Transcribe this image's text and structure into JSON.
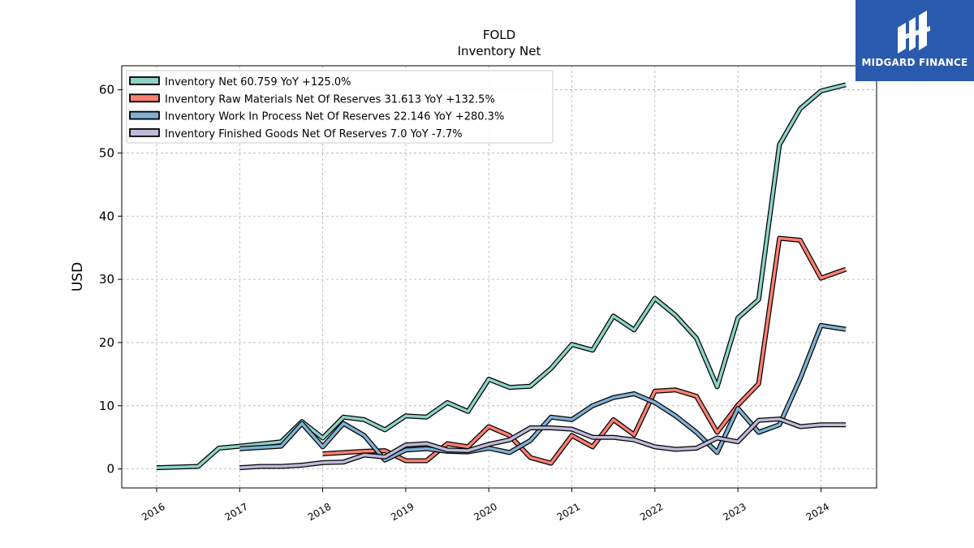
{
  "brand": {
    "name": "MIDGARD FINANCE",
    "bg_color": "#2a5aad"
  },
  "chart_data": {
    "type": "line",
    "title": "FOLD",
    "subtitle": "Inventory Net",
    "xlabel": "",
    "ylabel": "USD",
    "xlim": [
      2015.58,
      2024.67
    ],
    "ylim": [
      -3.0,
      63.8
    ],
    "yticks": [
      0,
      10,
      20,
      30,
      40,
      50,
      60
    ],
    "xticks": [
      "2016",
      "2017",
      "2018",
      "2019",
      "2020",
      "2021",
      "2022",
      "2023",
      "2024"
    ],
    "grid": true,
    "legend_position": "top-left",
    "series": [
      {
        "name": "Inventory Net  60.759 YoY +125.0%",
        "color": "#8dd3c7",
        "points": [
          [
            2016.0,
            0.2
          ],
          [
            2016.5,
            0.4
          ],
          [
            2016.75,
            3.3
          ],
          [
            2017.0,
            3.6
          ],
          [
            2017.5,
            4.3
          ],
          [
            2017.75,
            7.5
          ],
          [
            2018.0,
            4.9
          ],
          [
            2018.25,
            8.2
          ],
          [
            2018.5,
            7.8
          ],
          [
            2018.75,
            6.2
          ],
          [
            2019.0,
            8.4
          ],
          [
            2019.25,
            8.2
          ],
          [
            2019.5,
            10.5
          ],
          [
            2019.75,
            9.1
          ],
          [
            2020.0,
            14.2
          ],
          [
            2020.25,
            12.9
          ],
          [
            2020.5,
            13.1
          ],
          [
            2020.75,
            15.9
          ],
          [
            2021.0,
            19.7
          ],
          [
            2021.25,
            18.8
          ],
          [
            2021.5,
            24.2
          ],
          [
            2021.75,
            22.0
          ],
          [
            2022.0,
            27.0
          ],
          [
            2022.25,
            24.3
          ],
          [
            2022.5,
            20.7
          ],
          [
            2022.75,
            13.0
          ],
          [
            2023.0,
            23.9
          ],
          [
            2023.25,
            26.8
          ],
          [
            2023.5,
            51.3
          ],
          [
            2023.75,
            57.0
          ],
          [
            2024.0,
            59.8
          ],
          [
            2024.3,
            60.8
          ]
        ]
      },
      {
        "name": "Inventory Raw Materials Net Of Reserves  31.613 YoY +132.5%",
        "color": "#fb8072",
        "points": [
          [
            2018.0,
            2.4
          ],
          [
            2018.5,
            2.8
          ],
          [
            2018.75,
            2.9
          ],
          [
            2019.0,
            1.3
          ],
          [
            2019.25,
            1.3
          ],
          [
            2019.5,
            4.0
          ],
          [
            2019.75,
            3.5
          ],
          [
            2020.0,
            6.7
          ],
          [
            2020.25,
            5.3
          ],
          [
            2020.5,
            1.8
          ],
          [
            2020.75,
            0.9
          ],
          [
            2021.0,
            5.3
          ],
          [
            2021.25,
            3.5
          ],
          [
            2021.5,
            7.8
          ],
          [
            2021.75,
            5.4
          ],
          [
            2022.0,
            12.3
          ],
          [
            2022.25,
            12.5
          ],
          [
            2022.5,
            11.5
          ],
          [
            2022.75,
            5.8
          ],
          [
            2023.0,
            10.1
          ],
          [
            2023.25,
            13.5
          ],
          [
            2023.5,
            36.5
          ],
          [
            2023.75,
            36.2
          ],
          [
            2024.0,
            30.2
          ],
          [
            2024.3,
            31.6
          ]
        ]
      },
      {
        "name": "Inventory Work In Process Net Of Reserves  22.146 YoY +280.3%",
        "color": "#80b1d3",
        "points": [
          [
            2017.0,
            3.2
          ],
          [
            2017.5,
            3.6
          ],
          [
            2017.75,
            7.2
          ],
          [
            2018.0,
            3.5
          ],
          [
            2018.25,
            7.2
          ],
          [
            2018.5,
            5.3
          ],
          [
            2018.75,
            1.4
          ],
          [
            2019.0,
            3.0
          ],
          [
            2019.25,
            3.2
          ],
          [
            2019.5,
            2.8
          ],
          [
            2019.75,
            2.7
          ],
          [
            2020.0,
            3.3
          ],
          [
            2020.25,
            2.6
          ],
          [
            2020.5,
            4.5
          ],
          [
            2020.75,
            8.2
          ],
          [
            2021.0,
            7.8
          ],
          [
            2021.25,
            10.0
          ],
          [
            2021.5,
            11.3
          ],
          [
            2021.75,
            11.9
          ],
          [
            2022.0,
            10.5
          ],
          [
            2022.25,
            8.4
          ],
          [
            2022.5,
            5.8
          ],
          [
            2022.75,
            2.6
          ],
          [
            2023.0,
            9.6
          ],
          [
            2023.25,
            5.8
          ],
          [
            2023.5,
            7.0
          ],
          [
            2023.75,
            14.3
          ],
          [
            2024.0,
            22.7
          ],
          [
            2024.3,
            22.1
          ]
        ]
      },
      {
        "name": "Inventory Finished Goods Net Of Reserves  7.0 YoY -7.7%",
        "color": "#bebada",
        "points": [
          [
            2017.0,
            0.2
          ],
          [
            2017.25,
            0.4
          ],
          [
            2017.5,
            0.4
          ],
          [
            2017.75,
            0.6
          ],
          [
            2018.0,
            1.0
          ],
          [
            2018.25,
            1.1
          ],
          [
            2018.5,
            2.2
          ],
          [
            2018.75,
            1.9
          ],
          [
            2019.0,
            3.8
          ],
          [
            2019.25,
            4.0
          ],
          [
            2019.5,
            3.0
          ],
          [
            2019.75,
            2.9
          ],
          [
            2020.0,
            3.9
          ],
          [
            2020.25,
            4.6
          ],
          [
            2020.5,
            6.5
          ],
          [
            2020.75,
            6.5
          ],
          [
            2021.0,
            6.3
          ],
          [
            2021.25,
            5.0
          ],
          [
            2021.5,
            5.0
          ],
          [
            2021.75,
            4.6
          ],
          [
            2022.0,
            3.5
          ],
          [
            2022.25,
            3.1
          ],
          [
            2022.5,
            3.3
          ],
          [
            2022.75,
            4.9
          ],
          [
            2023.0,
            4.3
          ],
          [
            2023.25,
            7.7
          ],
          [
            2023.5,
            7.9
          ],
          [
            2023.75,
            6.7
          ],
          [
            2024.0,
            7.0
          ],
          [
            2024.3,
            7.0
          ]
        ]
      }
    ]
  }
}
